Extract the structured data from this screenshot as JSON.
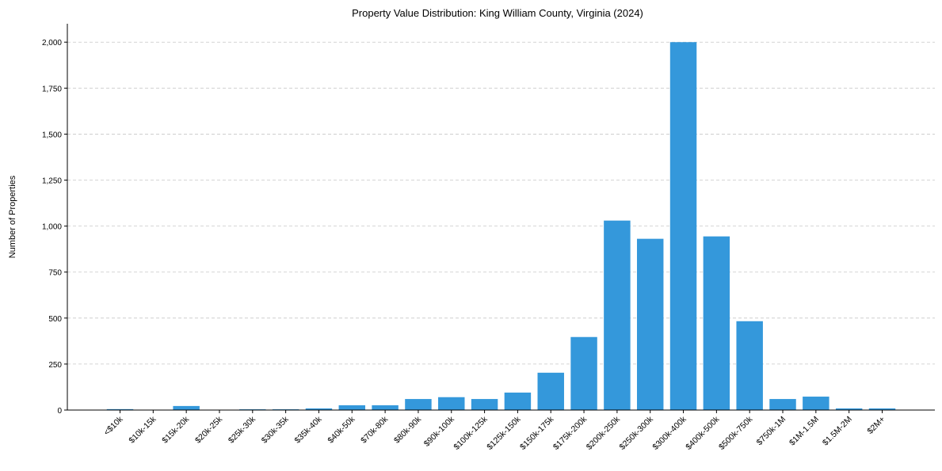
{
  "chart_data": {
    "type": "bar",
    "title": "Property Value Distribution: King William County, Virginia (2024)",
    "xlabel": "",
    "ylabel": "Number of Properties",
    "categories": [
      "<$10k",
      "$10k-15k",
      "$15k-20k",
      "$20k-25k",
      "$25k-30k",
      "$30k-35k",
      "$35k-40k",
      "$40k-50k",
      "$70k-80k",
      "$80k-90k",
      "$90k-100k",
      "$100k-125k",
      "$125k-150k",
      "$150k-175k",
      "$175k-200k",
      "$200k-250k",
      "$250k-300k",
      "$300k-400k",
      "$400k-500k",
      "$500k-750k",
      "$750k-1M",
      "$1M-1.5M",
      "$1.5M-2M",
      "$2M+"
    ],
    "values": [
      5,
      0,
      22,
      0,
      4,
      4,
      9,
      26,
      26,
      60,
      70,
      60,
      95,
      203,
      397,
      1030,
      931,
      2000,
      944,
      483,
      60,
      73,
      9,
      9
    ],
    "ylim": [
      0,
      2100
    ],
    "yticks": [
      0,
      250,
      500,
      750,
      1000,
      1250,
      1500,
      1750,
      2000
    ],
    "ytick_labels": [
      "0",
      "250",
      "500",
      "750",
      "1,000",
      "1,250",
      "1,500",
      "1,750",
      "2,000"
    ],
    "grid": "y-dashed",
    "bar_color": "#3498db"
  }
}
